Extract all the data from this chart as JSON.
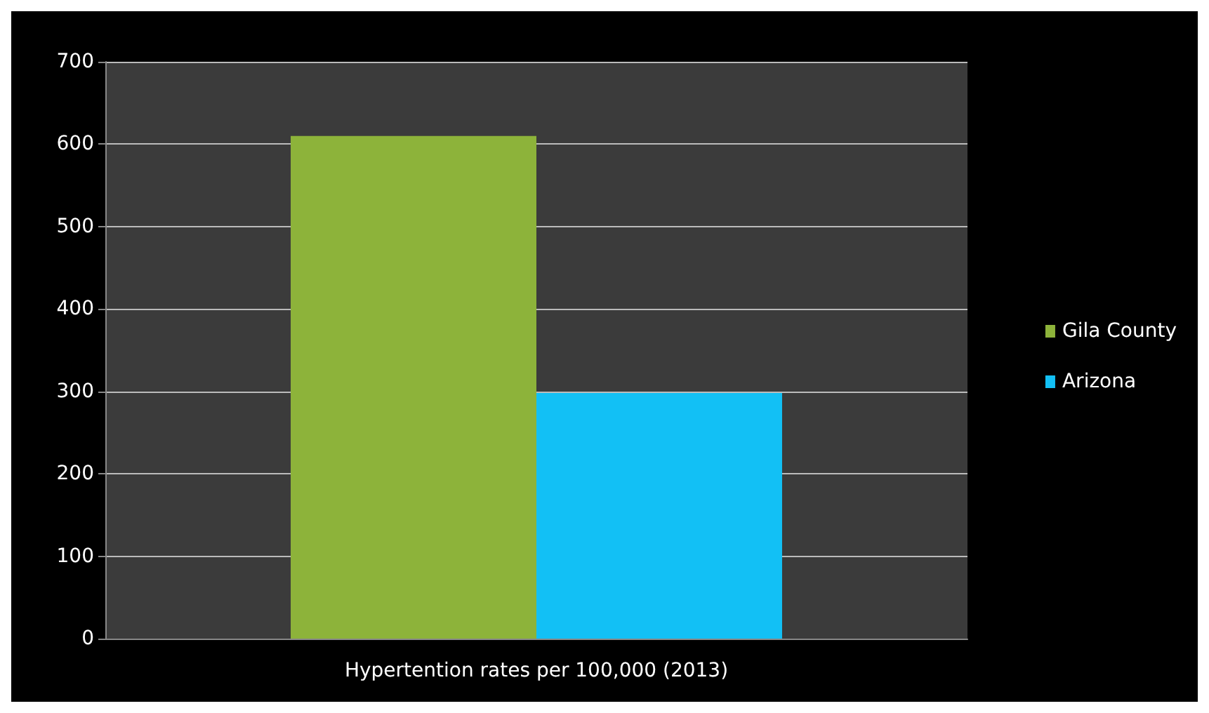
{
  "chart_data": {
    "type": "bar",
    "categories": [
      "Hypertention rates per 100,000 (2013)"
    ],
    "series": [
      {
        "name": "Gila County",
        "color": "#8db33a",
        "values": [
          610
        ]
      },
      {
        "name": "Arizona",
        "color": "#12c0f5",
        "values": [
          298
        ]
      }
    ],
    "ylim": [
      0,
      700
    ],
    "yticks": [
      0,
      100,
      200,
      300,
      400,
      500,
      600,
      700
    ],
    "grid": "y",
    "legend": "right"
  }
}
